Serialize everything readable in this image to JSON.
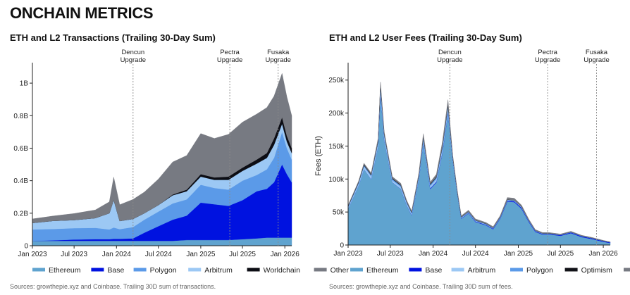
{
  "page": {
    "title": "ONCHAIN METRICS"
  },
  "colors": {
    "Ethereum": "#5fa3cf",
    "Base": "#0012e0",
    "Polygon": "#5b9ae8",
    "Arbitrum": "#9cc8f4",
    "Worldchain": "#0c0d14",
    "Other": "#777a82",
    "Optimism": "#111217"
  },
  "chart_data": [
    {
      "type": "area",
      "stacked": true,
      "title": "ETH and L2 Transactions (Trailing 30-Day Sum)",
      "source": "Sources: growthepie.xyz and Coinbase. Trailing 30D sum of transactions.",
      "xlim": [
        "2023-01-01",
        "2026-01-31"
      ],
      "ylim": [
        0,
        1.1
      ],
      "y_ticks": [
        0,
        0.2,
        0.4,
        0.6,
        0.8,
        1.0
      ],
      "y_tick_labels": [
        "0",
        "0.2B",
        "0.4B",
        "0.6B",
        "0.8B",
        "1B"
      ],
      "x_ticks": [
        "2023-01-01",
        "2023-07-01",
        "2024-01-01",
        "2024-07-01",
        "2025-01-01",
        "2025-07-01",
        "2026-01-01"
      ],
      "x_tick_labels": [
        "Jan 2023",
        "Jul 2023",
        "Jan 2024",
        "Jul 2024",
        "Jan 2025",
        "Jul 2025",
        "Jan 2026"
      ],
      "annotations": [
        {
          "date": "2024-03-13",
          "lines": [
            "Dencun",
            "Upgrade"
          ]
        },
        {
          "date": "2025-05-07",
          "lines": [
            "Pectra",
            "Upgrade"
          ]
        },
        {
          "date": "2025-12-03",
          "lines": [
            "Fusaka",
            "Upgrade"
          ]
        }
      ],
      "legend": [
        "Ethereum",
        "Base",
        "Polygon",
        "Arbitrum",
        "Worldchain",
        "Other"
      ],
      "x": [
        "2023-01-01",
        "2023-04-01",
        "2023-07-01",
        "2023-10-01",
        "2023-12-01",
        "2023-12-20",
        "2024-01-15",
        "2024-03-13",
        "2024-05-01",
        "2024-07-01",
        "2024-09-01",
        "2024-11-01",
        "2025-01-01",
        "2025-03-01",
        "2025-05-01",
        "2025-07-01",
        "2025-09-01",
        "2025-10-15",
        "2025-11-15",
        "2025-12-20",
        "2026-01-10",
        "2026-01-31"
      ],
      "series": [
        {
          "name": "Ethereum",
          "values": [
            0.03,
            0.03,
            0.03,
            0.03,
            0.03,
            0.03,
            0.03,
            0.03,
            0.03,
            0.03,
            0.03,
            0.035,
            0.035,
            0.035,
            0.035,
            0.04,
            0.045,
            0.05,
            0.05,
            0.05,
            0.05,
            0.05
          ]
        },
        {
          "name": "Base",
          "values": [
            0,
            0.003,
            0.008,
            0.01,
            0.01,
            0.012,
            0.012,
            0.015,
            0.05,
            0.09,
            0.13,
            0.15,
            0.23,
            0.22,
            0.21,
            0.24,
            0.29,
            0.3,
            0.34,
            0.45,
            0.39,
            0.34
          ]
        },
        {
          "name": "Polygon",
          "values": [
            0.07,
            0.07,
            0.07,
            0.07,
            0.06,
            0.07,
            0.06,
            0.07,
            0.08,
            0.09,
            0.1,
            0.1,
            0.11,
            0.1,
            0.1,
            0.12,
            0.1,
            0.12,
            0.15,
            0.2,
            0.16,
            0.14
          ]
        },
        {
          "name": "Arbitrum",
          "values": [
            0.04,
            0.05,
            0.05,
            0.06,
            0.1,
            0.17,
            0.05,
            0.05,
            0.04,
            0.04,
            0.05,
            0.05,
            0.05,
            0.05,
            0.06,
            0.06,
            0.07,
            0.07,
            0.08,
            0.05,
            0.04,
            0.04
          ]
        },
        {
          "name": "Worldchain",
          "values": [
            0,
            0,
            0,
            0,
            0,
            0,
            0,
            0,
            0,
            0,
            0.005,
            0.01,
            0.015,
            0.015,
            0.02,
            0.02,
            0.025,
            0.03,
            0.04,
            0.04,
            0.035,
            0.03
          ]
        },
        {
          "name": "Other",
          "values": [
            0.025,
            0.03,
            0.04,
            0.05,
            0.07,
            0.14,
            0.1,
            0.12,
            0.13,
            0.16,
            0.2,
            0.21,
            0.25,
            0.24,
            0.26,
            0.28,
            0.28,
            0.28,
            0.26,
            0.27,
            0.24,
            0.2
          ]
        }
      ]
    },
    {
      "type": "area",
      "stacked": true,
      "title": "ETH and L2 User Fees (Trailing 30-Day Sum)",
      "source": "Sources: growthepie.xyz and Coinbase. Trailing 30D sum of fees.",
      "ylabel": "Fees (ETH)",
      "xlim": [
        "2023-01-01",
        "2026-01-31"
      ],
      "ylim": [
        0,
        270000
      ],
      "y_ticks": [
        0,
        50000,
        100000,
        150000,
        200000,
        250000
      ],
      "y_tick_labels": [
        "0",
        "50k",
        "100k",
        "150k",
        "200k",
        "250k"
      ],
      "x_ticks": [
        "2023-01-01",
        "2023-07-01",
        "2024-01-01",
        "2024-07-01",
        "2025-01-01",
        "2025-07-01",
        "2026-01-01"
      ],
      "x_tick_labels": [
        "Jan 2023",
        "Jul 2023",
        "Jan 2024",
        "Jul 2024",
        "Jan 2025",
        "Jul 2025",
        "Jan 2026"
      ],
      "annotations": [
        {
          "date": "2024-03-13",
          "lines": [
            "Dencun",
            "Upgrade"
          ]
        },
        {
          "date": "2025-05-07",
          "lines": [
            "Pectra",
            "Upgrade"
          ]
        },
        {
          "date": "2025-12-03",
          "lines": [
            "Fusaka",
            "Upgrade"
          ]
        }
      ],
      "legend": [
        "Ethereum",
        "Base",
        "Arbitrum",
        "Polygon",
        "Optimism",
        "Other"
      ],
      "x": [
        "2023-01-01",
        "2023-02-15",
        "2023-03-10",
        "2023-04-10",
        "2023-05-10",
        "2023-05-20",
        "2023-06-05",
        "2023-07-10",
        "2023-08-15",
        "2023-09-10",
        "2023-10-01",
        "2023-11-01",
        "2023-11-20",
        "2023-12-20",
        "2024-01-15",
        "2024-02-10",
        "2024-03-05",
        "2024-03-25",
        "2024-04-15",
        "2024-05-01",
        "2024-06-01",
        "2024-07-01",
        "2024-08-15",
        "2024-09-15",
        "2024-10-15",
        "2024-11-15",
        "2024-12-15",
        "2025-01-15",
        "2025-02-15",
        "2025-03-15",
        "2025-04-15",
        "2025-05-15",
        "2025-07-01",
        "2025-08-15",
        "2025-10-01",
        "2025-11-15",
        "2026-01-01",
        "2026-01-31"
      ],
      "series": [
        {
          "name": "Ethereum",
          "values": [
            55000,
            90000,
            115000,
            100000,
            150000,
            230000,
            160000,
            95000,
            85000,
            60000,
            45000,
            100000,
            155000,
            85000,
            95000,
            140000,
            200000,
            130000,
            75000,
            40000,
            48000,
            35000,
            30000,
            24000,
            40000,
            66000,
            65000,
            55000,
            35000,
            20000,
            16000,
            16000,
            14000,
            18000,
            12000,
            9000,
            5000,
            3000
          ]
        },
        {
          "name": "Base",
          "values": [
            0,
            0,
            0,
            0,
            0,
            0,
            0,
            100,
            200,
            300,
            400,
            600,
            800,
            1000,
            1100,
            1300,
            1400,
            700,
            600,
            600,
            700,
            800,
            800,
            900,
            1000,
            1200,
            1300,
            1400,
            1200,
            1000,
            900,
            900,
            1000,
            1100,
            1200,
            1100,
            1000,
            900
          ]
        },
        {
          "name": "Arbitrum",
          "values": [
            2000,
            3000,
            4000,
            4000,
            5000,
            8000,
            5000,
            3000,
            3000,
            2500,
            2000,
            3000,
            4000,
            3500,
            4000,
            5000,
            6000,
            2000,
            1000,
            800,
            900,
            800,
            700,
            600,
            700,
            900,
            900,
            800,
            600,
            500,
            400,
            400,
            300,
            300,
            300,
            200,
            200,
            200
          ]
        },
        {
          "name": "Polygon",
          "values": [
            1500,
            1500,
            1800,
            1800,
            2000,
            3000,
            2500,
            2000,
            2000,
            1800,
            1600,
            2000,
            2500,
            2000,
            2200,
            2500,
            2800,
            1200,
            900,
            700,
            700,
            700,
            600,
            500,
            500,
            600,
            600,
            500,
            400,
            350,
            300,
            300,
            250,
            250,
            200,
            200,
            150,
            150
          ]
        },
        {
          "name": "Optimism",
          "values": [
            800,
            1000,
            1200,
            1000,
            1500,
            2000,
            1500,
            1000,
            900,
            800,
            700,
            1000,
            1500,
            1000,
            1000,
            1500,
            2000,
            600,
            400,
            300,
            300,
            300,
            300,
            250,
            250,
            300,
            300,
            300,
            200,
            150,
            150,
            150,
            120,
            120,
            100,
            100,
            80,
            80
          ]
        },
        {
          "name": "Other",
          "values": [
            1000,
            1500,
            2000,
            2500,
            3500,
            4000,
            3000,
            2500,
            2500,
            2000,
            2000,
            3000,
            5000,
            3000,
            4000,
            6000,
            8000,
            3000,
            2500,
            2000,
            2200,
            2000,
            1800,
            1600,
            2000,
            3000,
            2800,
            2400,
            1800,
            1400,
            1200,
            1100,
            1000,
            1000,
            900,
            800,
            600,
            500
          ]
        }
      ]
    }
  ]
}
